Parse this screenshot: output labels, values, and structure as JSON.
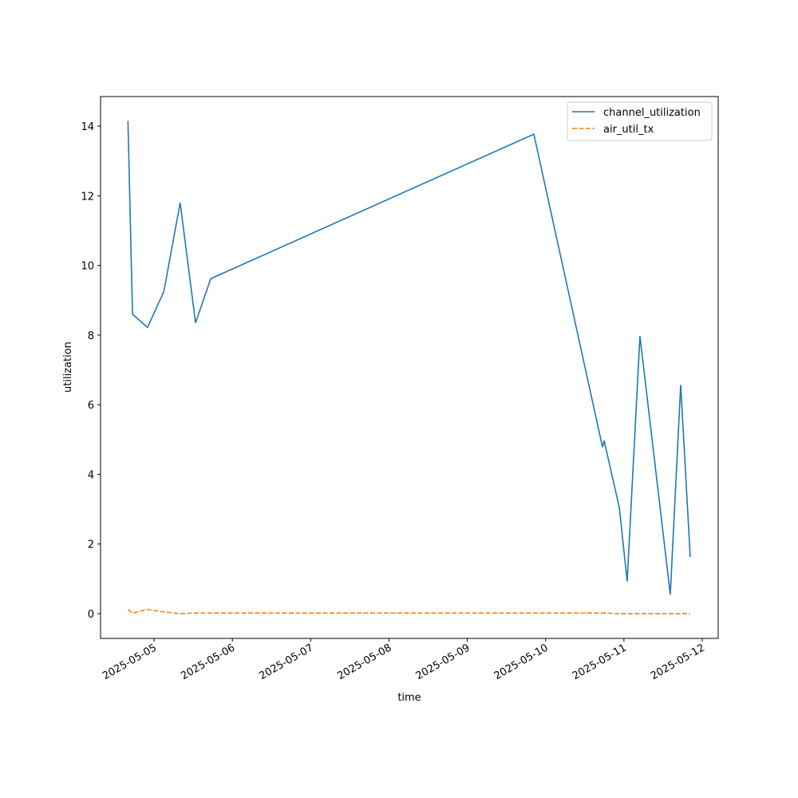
{
  "chart_data": {
    "type": "line",
    "xlabel": "time",
    "ylabel": "utilization",
    "x": [
      "2025-05-04T16:00",
      "2025-05-04T17:24",
      "2025-05-04T22:00",
      "2025-05-05T03:00",
      "2025-05-05T08:00",
      "2025-05-05T12:43",
      "2025-05-05T17:22",
      "2025-05-09T20:24",
      "2025-05-10T17:27",
      "2025-05-10T17:56",
      "2025-05-10T22:35",
      "2025-05-11T01:00",
      "2025-05-11T04:55",
      "2025-05-11T14:13",
      "2025-05-11T17:24",
      "2025-05-11T20:20"
    ],
    "series": [
      {
        "name": "channel_utilization",
        "color": "#1f77b4",
        "linestyle": "solid",
        "values": [
          14.15,
          8.6,
          8.22,
          9.25,
          11.8,
          8.35,
          9.62,
          13.77,
          4.78,
          4.97,
          3.05,
          0.93,
          7.97,
          0.55,
          6.57,
          1.63
        ]
      },
      {
        "name": "air_util_tx",
        "color": "#ff7f0e",
        "linestyle": "dashed",
        "values": [
          0.12,
          0.02,
          0.12,
          0.05,
          0.0,
          0.02,
          0.02,
          0.02,
          0.02,
          0.02,
          0.0,
          0.0,
          0.0,
          0.0,
          0.0,
          0.0
        ]
      }
    ],
    "xlim": [
      "2025-05-04T07:36",
      "2025-05-12T04:54"
    ],
    "xticks": [
      "2025-05-05",
      "2025-05-06",
      "2025-05-07",
      "2025-05-08",
      "2025-05-09",
      "2025-05-10",
      "2025-05-11",
      "2025-05-12"
    ],
    "ylim": [
      -0.71,
      14.85
    ],
    "yticks": [
      0,
      2,
      4,
      6,
      8,
      10,
      12,
      14
    ],
    "grid": false,
    "legend": "upper right"
  }
}
